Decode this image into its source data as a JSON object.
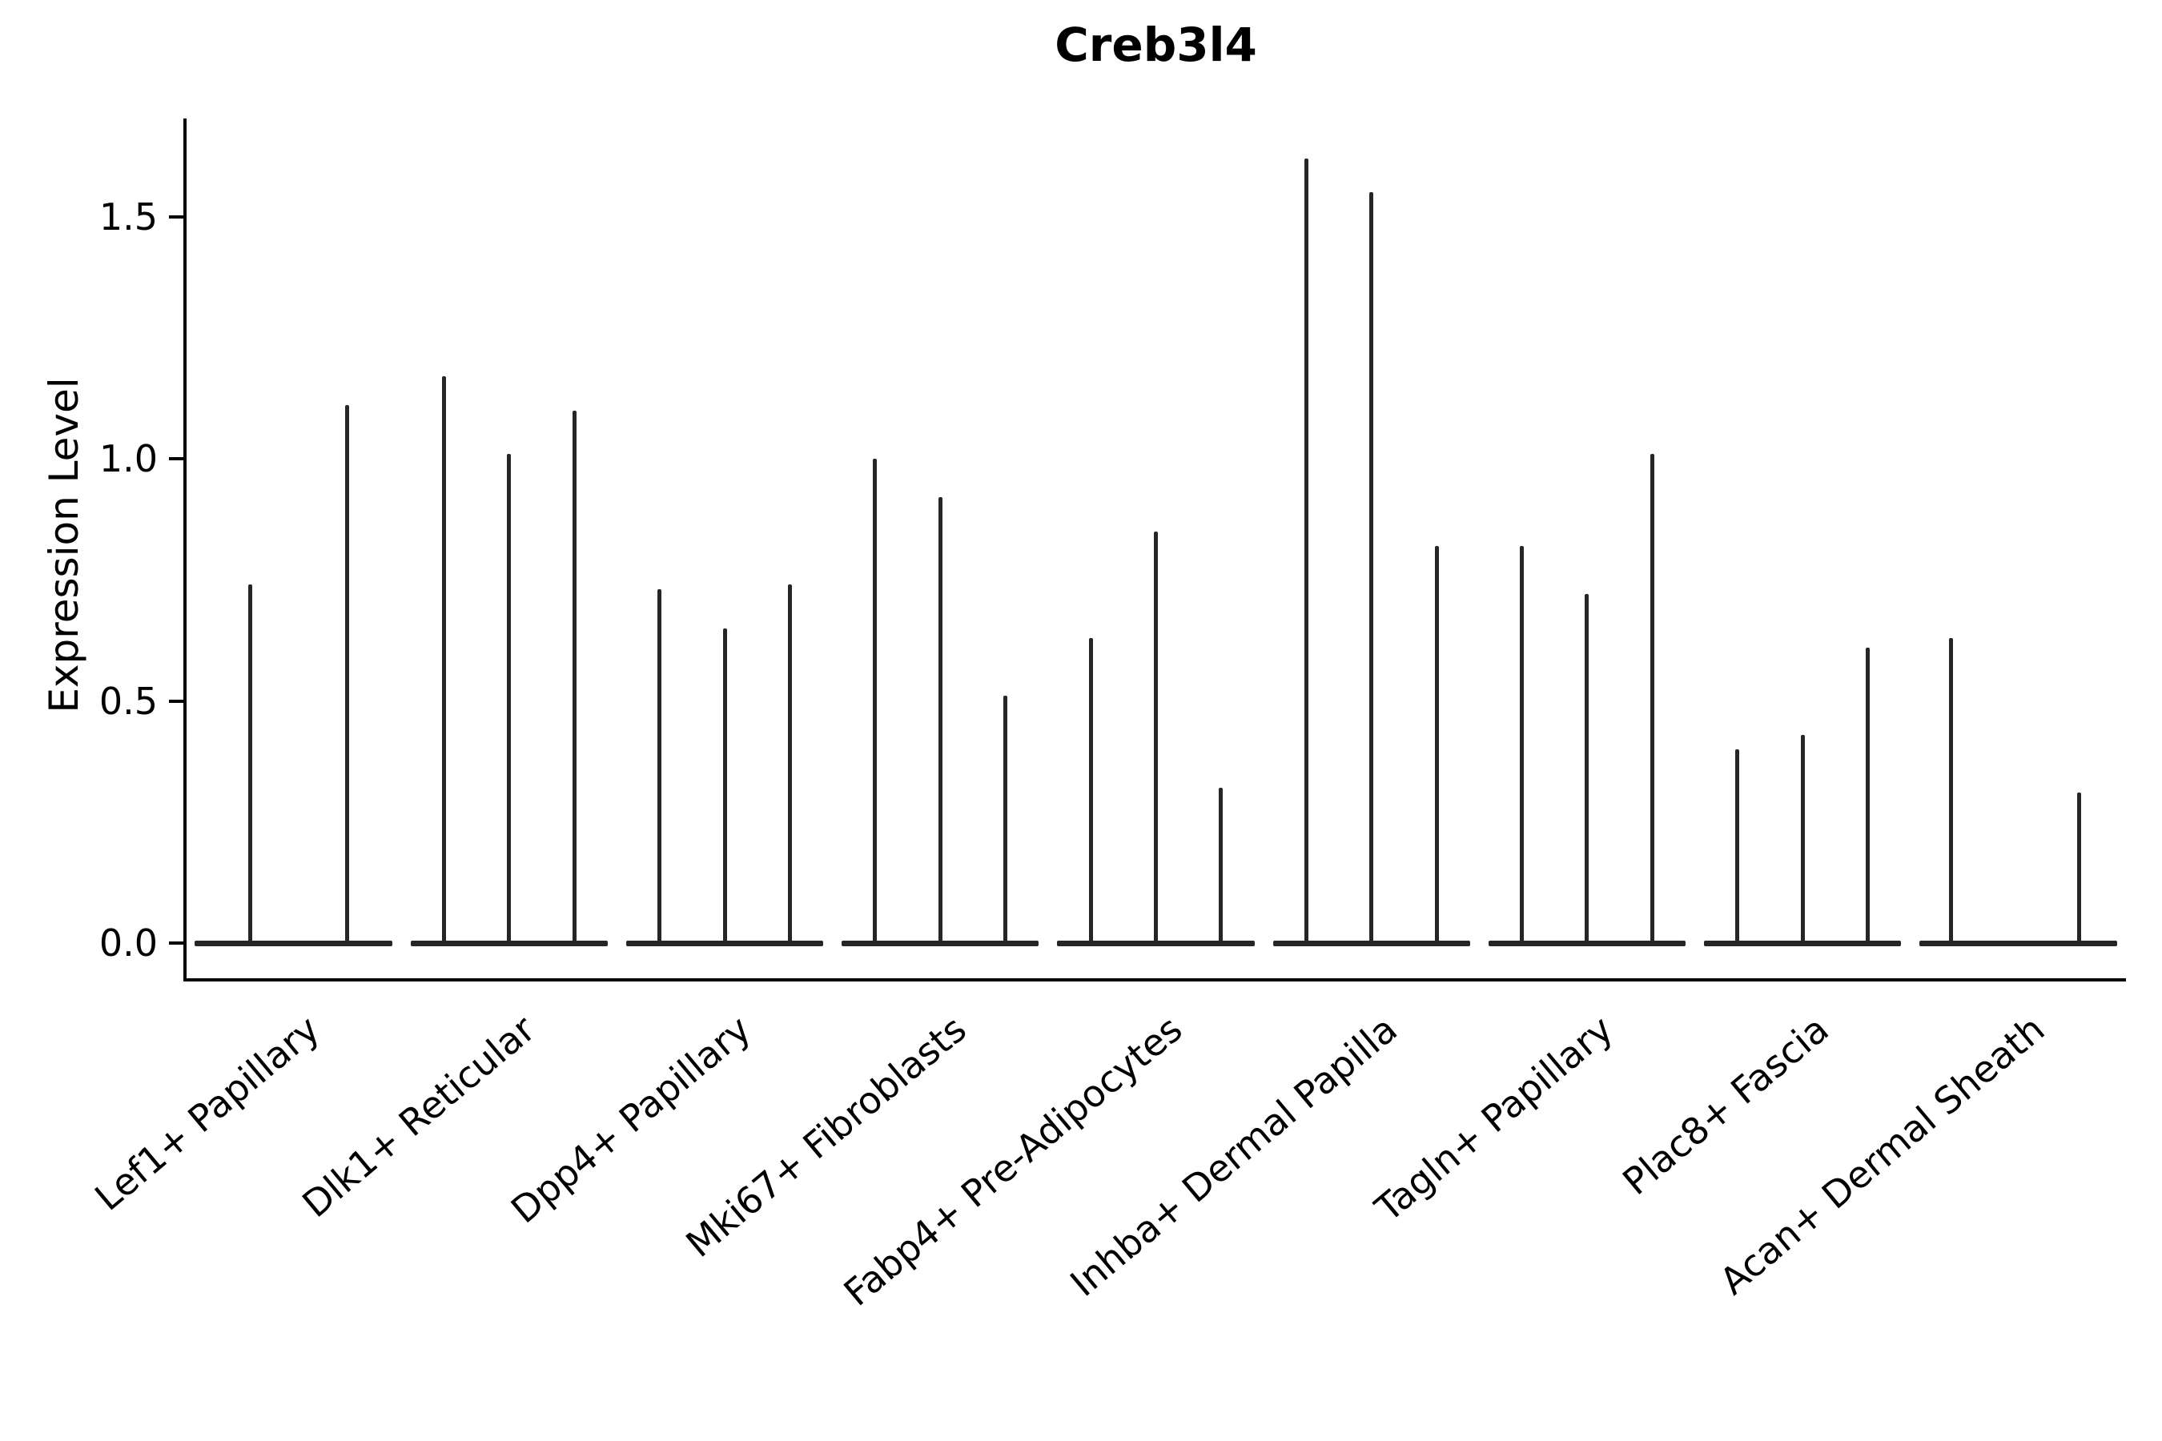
{
  "title": "Creb3l4",
  "colors": {
    "violin": "#262626",
    "axis": "#000000",
    "text": "#000000",
    "background": "#ffffff"
  },
  "chart_data": {
    "type": "violin",
    "title": "Creb3l4",
    "xlabel": "",
    "ylabel": "Expression Level",
    "ylim": [
      -0.05,
      1.72
    ],
    "yticks": [
      0.0,
      0.5,
      1.0,
      1.5
    ],
    "ytick_labels": [
      "0.0",
      "0.5",
      "1.0",
      "1.5"
    ],
    "grid": false,
    "legend_position": "none",
    "categories": [
      "Lef1+ Papillary",
      "Dlk1+ Reticular",
      "Dpp4+ Papillary",
      "Mki67+ Fibroblasts",
      "Fabp4+ Pre-Adipocytes",
      "Inhba+ Dermal Papilla",
      "Tagln+ Papillary",
      "Plac8+ Fascia",
      "Acan+ Dermal Sheath"
    ],
    "groups": [
      {
        "category": "Lef1+ Papillary",
        "violins": [
          {
            "pos": 0.28,
            "max": 0.74
          },
          {
            "pos": 0.77,
            "max": 1.11
          }
        ]
      },
      {
        "category": "Dlk1+ Reticular",
        "violins": [
          {
            "pos": 0.17,
            "max": 1.17
          },
          {
            "pos": 0.5,
            "max": 1.01
          },
          {
            "pos": 0.83,
            "max": 1.1
          }
        ]
      },
      {
        "category": "Dpp4+ Papillary",
        "violins": [
          {
            "pos": 0.17,
            "max": 0.73
          },
          {
            "pos": 0.5,
            "max": 0.65
          },
          {
            "pos": 0.83,
            "max": 0.74
          }
        ]
      },
      {
        "category": "Mki67+ Fibroblasts",
        "violins": [
          {
            "pos": 0.17,
            "max": 1.0
          },
          {
            "pos": 0.5,
            "max": 0.92
          },
          {
            "pos": 0.83,
            "max": 0.51
          }
        ]
      },
      {
        "category": "Fabp4+ Pre-Adipocytes",
        "violins": [
          {
            "pos": 0.17,
            "max": 0.63
          },
          {
            "pos": 0.5,
            "max": 0.85
          },
          {
            "pos": 0.83,
            "max": 0.32
          }
        ]
      },
      {
        "category": "Inhba+ Dermal Papilla",
        "violins": [
          {
            "pos": 0.17,
            "max": 1.62
          },
          {
            "pos": 0.5,
            "max": 1.55
          },
          {
            "pos": 0.83,
            "max": 0.82
          }
        ]
      },
      {
        "category": "Tagln+ Papillary",
        "violins": [
          {
            "pos": 0.17,
            "max": 0.82
          },
          {
            "pos": 0.5,
            "max": 0.72
          },
          {
            "pos": 0.83,
            "max": 1.01
          }
        ]
      },
      {
        "category": "Plac8+ Fascia",
        "violins": [
          {
            "pos": 0.17,
            "max": 0.4
          },
          {
            "pos": 0.5,
            "max": 0.43
          },
          {
            "pos": 0.83,
            "max": 0.61
          }
        ]
      },
      {
        "category": "Acan+ Dermal Sheath",
        "violins": [
          {
            "pos": 0.16,
            "max": 0.63
          },
          {
            "pos": 0.81,
            "max": 0.31
          }
        ]
      }
    ]
  }
}
